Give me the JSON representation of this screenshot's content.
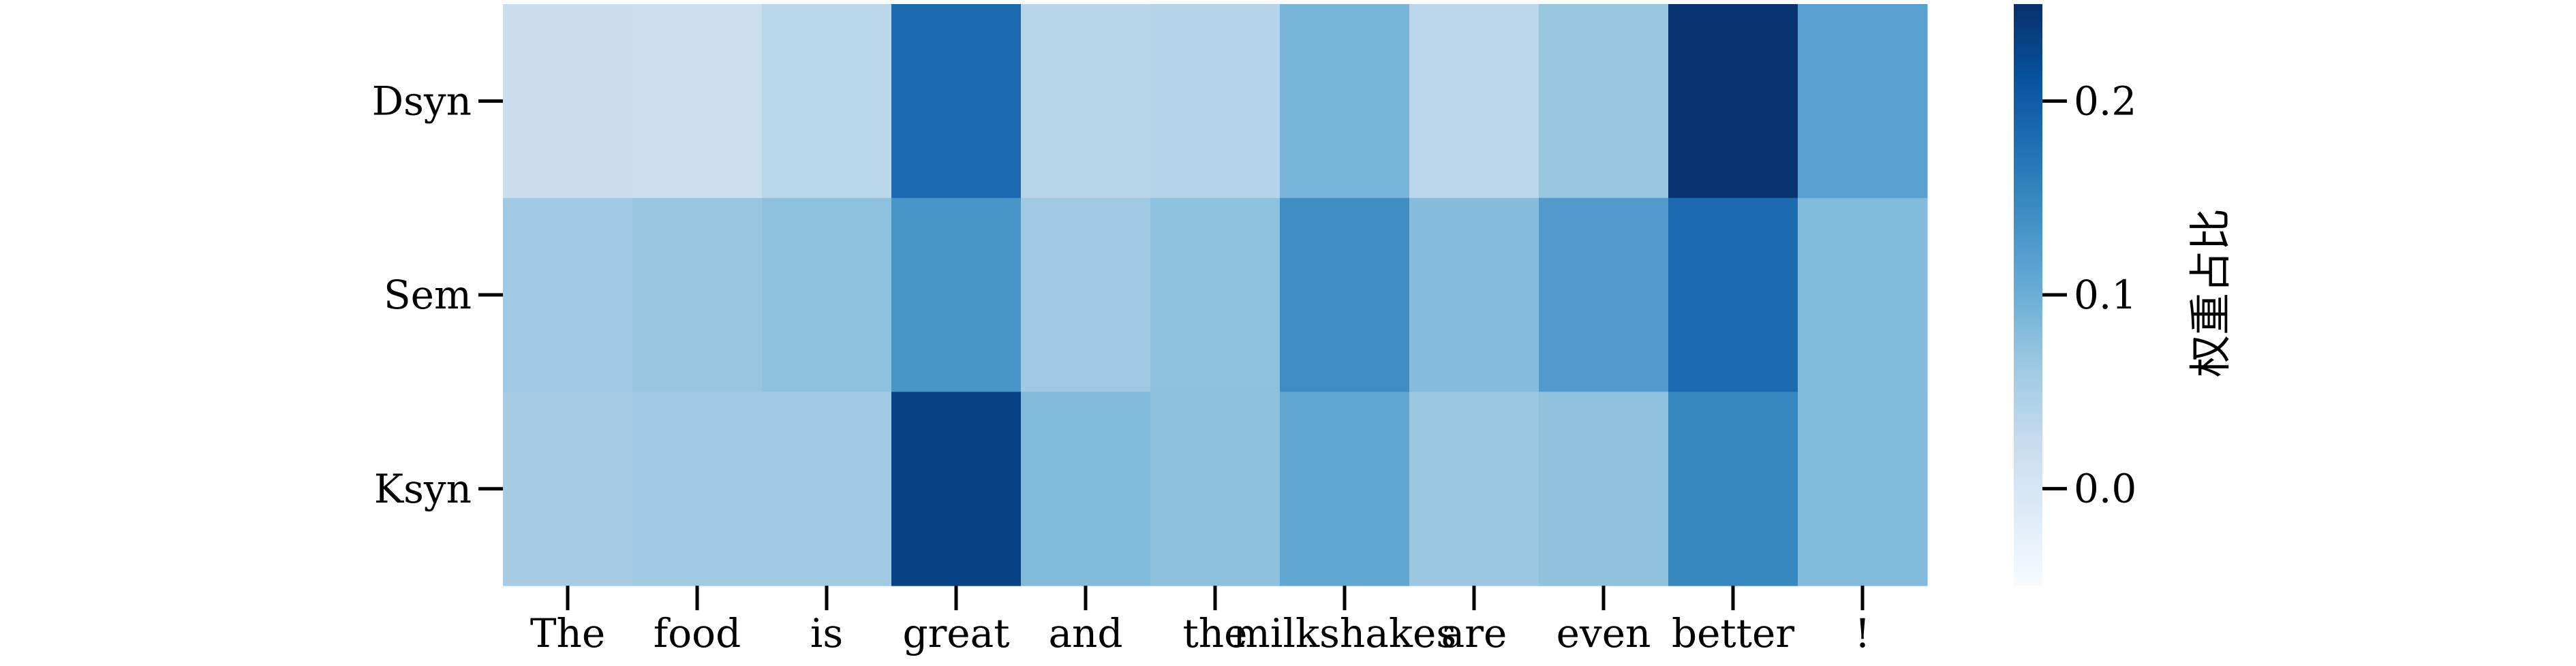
{
  "chart_data": {
    "type": "heatmap",
    "title": "",
    "xlabel": "",
    "ylabel": "",
    "x_categories": [
      "The",
      "food",
      "is",
      "great",
      "and",
      "the",
      "milkshakes",
      "are",
      "even",
      "better",
      "!"
    ],
    "y_categories": [
      "Dsyn",
      "Sem",
      "Ksyn"
    ],
    "values": [
      [
        0.018,
        0.016,
        0.036,
        0.182,
        0.038,
        0.04,
        0.09,
        0.035,
        0.068,
        0.245,
        0.118
      ],
      [
        0.062,
        0.068,
        0.075,
        0.132,
        0.062,
        0.074,
        0.142,
        0.08,
        0.125,
        0.182,
        0.082
      ],
      [
        0.055,
        0.062,
        0.06,
        0.228,
        0.082,
        0.076,
        0.11,
        0.065,
        0.072,
        0.15,
        0.084
      ]
    ],
    "colormap": [
      "#f7fbff",
      "#deebf7",
      "#c6dbef",
      "#9ecae1",
      "#6baed6",
      "#4292c6",
      "#2171b5",
      "#08519c",
      "#08306b"
    ],
    "colorbar": {
      "label": "权重占比",
      "range": [
        -0.05,
        0.25
      ],
      "ticks": [
        0.0,
        0.1,
        0.2
      ],
      "tick_labels": [
        "0.0",
        "0.1",
        "0.2"
      ]
    }
  }
}
